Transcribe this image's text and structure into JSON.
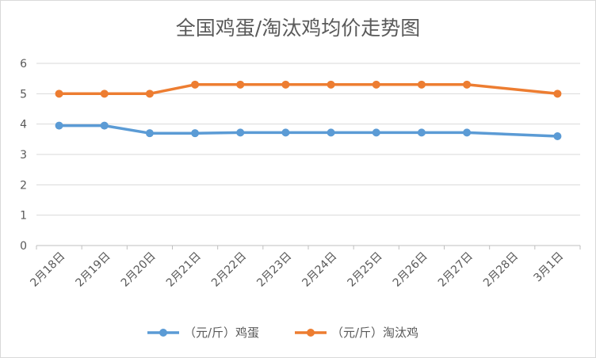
{
  "chart_data": {
    "type": "line",
    "title": "全国鸡蛋/淘汰鸡均价走势图",
    "categories": [
      "2月18日",
      "2月19日",
      "2月20日",
      "2月21日",
      "2月22日",
      "2月23日",
      "2月24日",
      "2月25日",
      "2月26日",
      "2月27日",
      "2月28日",
      "3月1日"
    ],
    "ylim": [
      0,
      6
    ],
    "yticks": [
      0,
      1,
      2,
      3,
      4,
      5,
      6
    ],
    "grid": true,
    "legend_position": "bottom",
    "series": [
      {
        "name": "（元/斤）鸡蛋",
        "color": "#5b9bd5",
        "values": [
          3.95,
          3.95,
          3.7,
          3.7,
          3.72,
          3.72,
          3.72,
          3.72,
          3.72,
          3.72,
          null,
          3.6
        ]
      },
      {
        "name": "（元/斤）淘汰鸡",
        "color": "#ed7d31",
        "values": [
          5.0,
          5.0,
          5.0,
          5.3,
          5.3,
          5.3,
          5.3,
          5.3,
          5.3,
          5.3,
          null,
          5.0
        ]
      }
    ]
  }
}
